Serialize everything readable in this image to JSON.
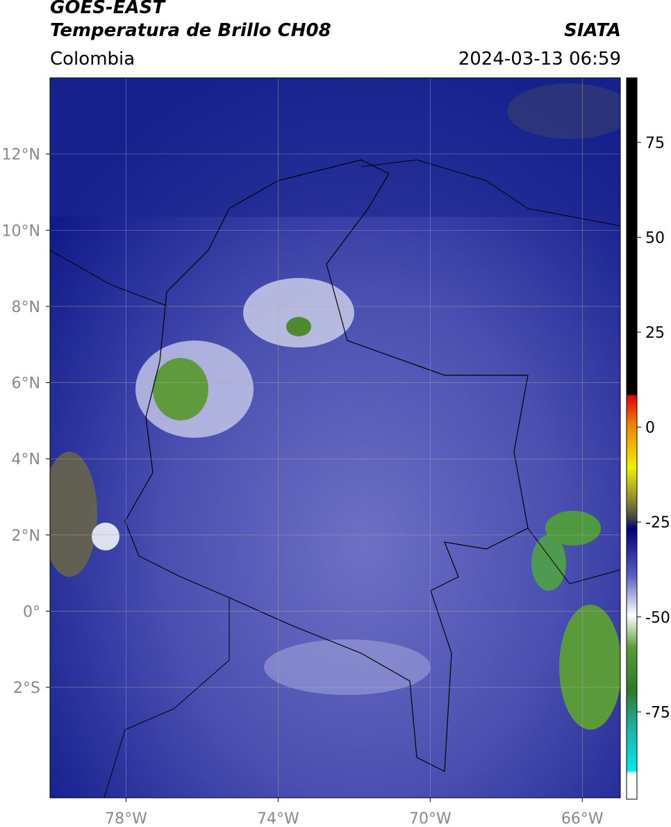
{
  "header": {
    "line1": "GOES-EAST",
    "line2": "Temperatura de Brillo CH08",
    "source": "SIATA",
    "region": "Colombia",
    "datetime": "2024-03-13 06:59"
  },
  "map": {
    "xlim": [
      -80,
      -65
    ],
    "ylim": [
      -4.9,
      14
    ],
    "xticks": [
      {
        "value": -78,
        "label": "78°W"
      },
      {
        "value": -74,
        "label": "74°W"
      },
      {
        "value": -70,
        "label": "70°W"
      },
      {
        "value": -66,
        "label": "66°W"
      }
    ],
    "yticks": [
      {
        "value": 12,
        "label": "12°N"
      },
      {
        "value": 10,
        "label": "10°N"
      },
      {
        "value": 8,
        "label": "8°N"
      },
      {
        "value": 6,
        "label": "6°N"
      },
      {
        "value": 4,
        "label": "4°N"
      },
      {
        "value": 2,
        "label": "2°N"
      },
      {
        "value": 0,
        "label": "0°"
      },
      {
        "value": -2,
        "label": "2°S"
      }
    ]
  },
  "colorbar": {
    "lim": [
      -98,
      92
    ],
    "ticks": [
      75,
      50,
      25,
      0,
      -25,
      -50,
      -75
    ]
  }
}
